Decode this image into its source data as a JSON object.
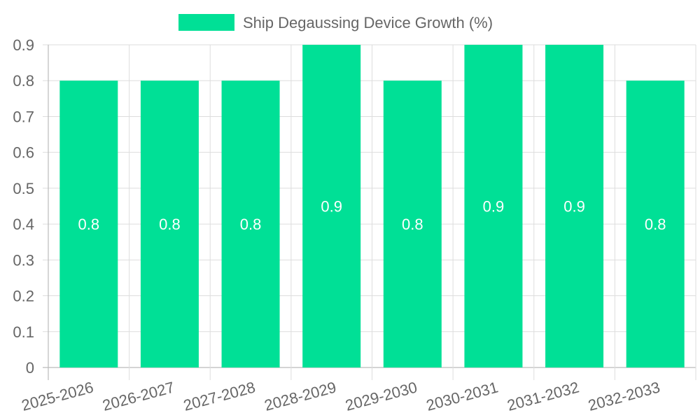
{
  "chart_data": {
    "type": "bar",
    "categories": [
      "2025-2026",
      "2026-2027",
      "2027-2028",
      "2028-2029",
      "2029-2030",
      "2030-2031",
      "2031-2032",
      "2032-2033"
    ],
    "series": [
      {
        "name": "Ship Degaussing Device Growth (%)",
        "values": [
          0.8,
          0.8,
          0.8,
          0.9,
          0.8,
          0.9,
          0.9,
          0.8
        ]
      }
    ],
    "data_labels": [
      "0.8",
      "0.8",
      "0.8",
      "0.9",
      "0.8",
      "0.9",
      "0.9",
      "0.8"
    ],
    "y_ticks": [
      "0",
      "0.1",
      "0.2",
      "0.3",
      "0.4",
      "0.5",
      "0.6",
      "0.7",
      "0.8",
      "0.9"
    ],
    "ylim": [
      0,
      0.9
    ],
    "grid": true,
    "legend_position": "top-center",
    "bar_color": "#00e096"
  }
}
